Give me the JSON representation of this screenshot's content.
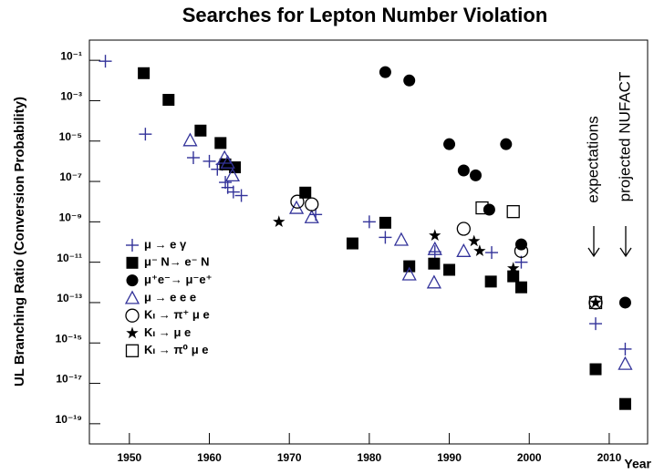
{
  "chart_data": {
    "type": "scatter",
    "title": "Searches for Lepton Number Violation",
    "y_label": "UL Branching Ratio (Conversion Probability)",
    "x_label": "Year",
    "annotations": [
      "expectations",
      "projected NUFACT"
    ],
    "log_y": true,
    "xlim": [
      1945,
      2014.8
    ],
    "ylim": [
      1e-20,
      1
    ],
    "xticks": [
      1950,
      1960,
      1970,
      1980,
      1990,
      2000,
      2010
    ],
    "yticks": [
      {
        "value": 0.1,
        "label": "10⁻¹"
      },
      {
        "value": 0.001,
        "label": "10⁻³"
      },
      {
        "value": 1e-05,
        "label": "10⁻⁵"
      },
      {
        "value": 1e-07,
        "label": "10⁻⁷"
      },
      {
        "value": 1e-09,
        "label": "10⁻⁹"
      },
      {
        "value": 1e-11,
        "label": "10⁻¹¹"
      },
      {
        "value": 1e-13,
        "label": "10⁻¹³"
      },
      {
        "value": 1e-15,
        "label": "10⁻¹⁵"
      },
      {
        "value": 1e-17,
        "label": "10⁻¹⁷"
      },
      {
        "value": 1e-19,
        "label": "10⁻¹⁹"
      }
    ],
    "series": [
      {
        "name": "μ → e γ",
        "marker": "plus",
        "color": "#33339a",
        "x": [
          1947,
          1952,
          1958,
          1960,
          1961,
          1961.6,
          1962,
          1962.3,
          1963,
          1964,
          1973.3,
          1980,
          1982,
          1988.2,
          1995.3,
          1999,
          2008.3,
          2012
        ],
        "values": [
          0.09,
          2.2e-05,
          1.5e-06,
          1e-06,
          4e-07,
          7e-07,
          9e-08,
          5e-08,
          3e-08,
          2e-08,
          2.3e-09,
          1e-09,
          1.7e-10,
          3.3e-11,
          3e-11,
          1e-11,
          9e-15,
          5e-16
        ]
      },
      {
        "name": "μ⁻ N→ e⁻ N",
        "marker": "square",
        "color": "#000000",
        "x": [
          1951.8,
          1954.9,
          1958.9,
          1961.4,
          1962,
          1963.2,
          1972,
          1977.9,
          1982,
          1985,
          1988.1,
          1990,
          1995.2,
          1998,
          1999,
          2008.3,
          2012
        ],
        "values": [
          0.023,
          0.0011,
          3.3e-05,
          8e-06,
          7e-07,
          5e-07,
          2.8e-08,
          8.5e-11,
          9e-10,
          6.3e-12,
          8.5e-12,
          4.2e-12,
          1.1e-12,
          2e-12,
          5.7e-13,
          5e-17,
          9.5e-19
        ]
      },
      {
        "name": "μ⁺e⁻→ μ⁻e⁺",
        "marker": "circle",
        "color": "#000000",
        "x": [
          1982,
          1985,
          1990,
          1991.8,
          1993.3,
          1997.1,
          1995,
          1999,
          2012
        ],
        "values": [
          0.026,
          0.01,
          7e-06,
          3.5e-07,
          2e-07,
          7e-06,
          4e-09,
          7.6e-11,
          1e-13
        ]
      },
      {
        "name": "μ → e e e",
        "marker": "triangle",
        "color": "#33339a",
        "x": [
          1957.6,
          1961.9,
          1962.3,
          1962.9,
          1970.9,
          1972.8,
          1984,
          1985,
          1988.1,
          1988.2,
          1991.8,
          2012
        ],
        "values": [
          1.1e-05,
          1.5e-06,
          8.7e-07,
          2e-07,
          4.9e-09,
          1.7e-09,
          1.3e-10,
          2.5e-12,
          1e-12,
          4.5e-11,
          3.6e-11,
          9.3e-17
        ]
      },
      {
        "name": "Kₗ → π⁺ μ e",
        "marker": "open-circle",
        "color": "#000000",
        "x": [
          1971,
          1972.8,
          1991.8,
          1999,
          2008.3
        ],
        "values": [
          1e-08,
          7.4e-09,
          4.5e-10,
          3.6e-11,
          1e-13
        ]
      },
      {
        "name": "Kₗ → μ e",
        "marker": "star",
        "color": "#000000",
        "x": [
          1968.7,
          1988.2,
          1993.1,
          1993.8,
          1998,
          2008.3
        ],
        "values": [
          1e-09,
          2.1e-10,
          1.1e-10,
          3.6e-11,
          5e-12,
          1e-13
        ]
      },
      {
        "name": "Kₗ → π⁰ μ e",
        "marker": "open-square",
        "color": "#000000",
        "x": [
          1994.1,
          1998,
          2008.3
        ],
        "values": [
          4.9e-09,
          3.2e-09,
          1e-13
        ]
      }
    ]
  }
}
